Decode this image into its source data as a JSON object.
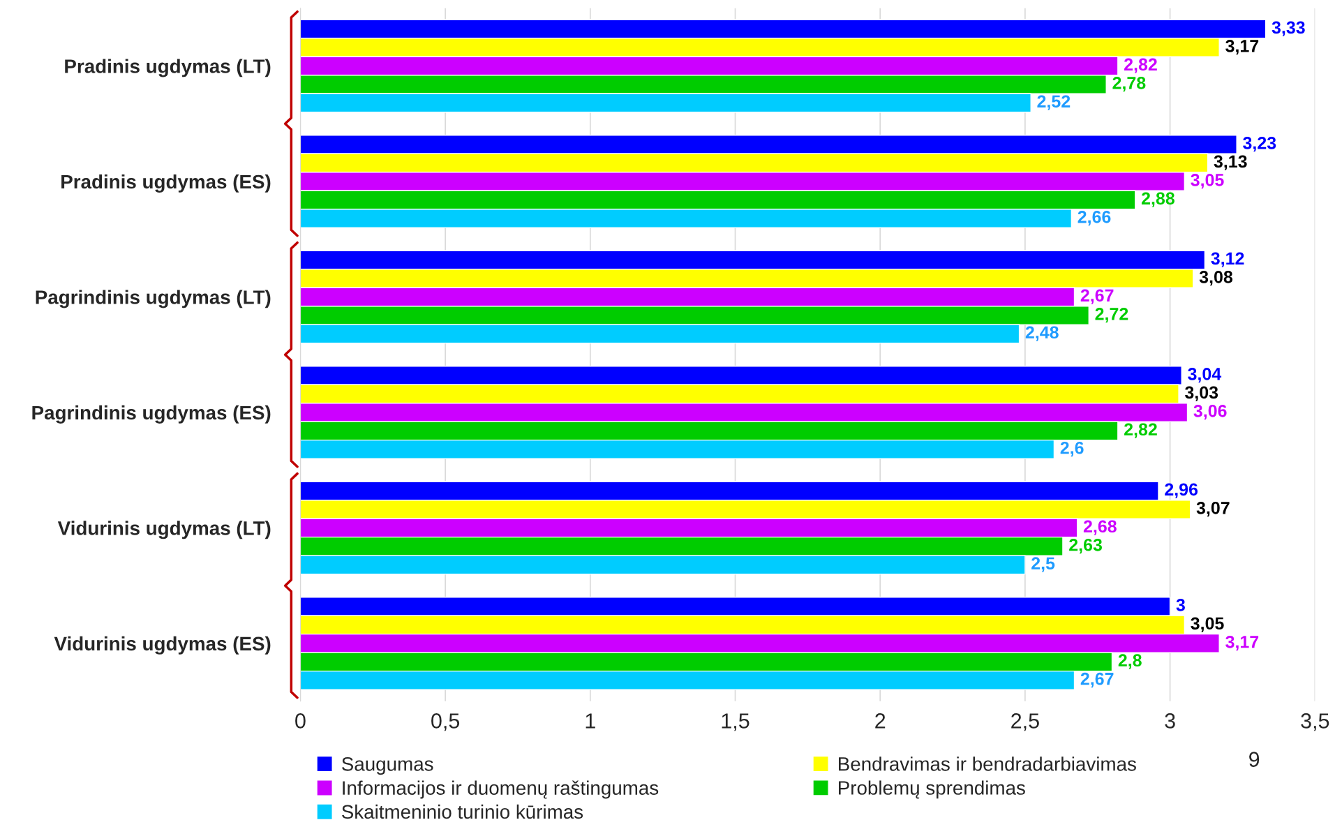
{
  "chart_data": {
    "type": "bar",
    "orientation": "horizontal",
    "categories": [
      "Pradinis ugdymas (LT)",
      "Pradinis ugdymas (ES)",
      "Pagrindinis ugdymas (LT)",
      "Pagrindinis ugdymas (ES)",
      "Vidurinis ugdymas (LT)",
      "Vidurinis ugdymas (ES)"
    ],
    "series": [
      {
        "name": "Saugumas",
        "color": "#0000ff",
        "values": [
          3.33,
          3.23,
          3.12,
          3.04,
          2.96,
          3
        ],
        "value_labels": [
          "3,33",
          "3,23",
          "3,12",
          "3,04",
          "2,96",
          "3"
        ]
      },
      {
        "name": "Bendravimas ir bendradarbiavimas",
        "color": "#ffff00",
        "values": [
          3.17,
          3.13,
          3.08,
          3.03,
          3.07,
          3.05
        ],
        "value_labels": [
          "3,17",
          "3,13",
          "3,08",
          "3,03",
          "3,07",
          "3,05"
        ]
      },
      {
        "name": "Informacijos ir duomenų raštingumas",
        "color": "#cc00ff",
        "values": [
          2.82,
          3.05,
          2.67,
          3.06,
          2.68,
          3.17
        ],
        "value_labels": [
          "2,82",
          "3,05",
          "2,67",
          "3,06",
          "2,68",
          "3,17"
        ]
      },
      {
        "name": "Problemų sprendimas",
        "color": "#00cc00",
        "values": [
          2.78,
          2.88,
          2.72,
          2.82,
          2.63,
          2.8
        ],
        "value_labels": [
          "2,78",
          "2,88",
          "2,72",
          "2,82",
          "2,63",
          "2,8"
        ]
      },
      {
        "name": "Skaitmeninio turinio kūrimas",
        "color": "#00ccff",
        "values": [
          2.52,
          2.66,
          2.48,
          2.6,
          2.5,
          2.67
        ],
        "value_labels": [
          "2,52",
          "2,66",
          "2,48",
          "2,6",
          "2,5",
          "2,67"
        ]
      }
    ],
    "xlim": [
      0,
      3.5
    ],
    "xticks": [
      0,
      {
        "value": 0.5,
        "label": "0,5"
      },
      1,
      {
        "value": 1.5,
        "label": "1,5"
      },
      2,
      {
        "value": 2.5,
        "label": "2,5"
      },
      3,
      {
        "value": 3.5,
        "label": "3,5"
      }
    ],
    "grid": "x",
    "legend": "bottom",
    "annotations": [
      "9"
    ]
  }
}
